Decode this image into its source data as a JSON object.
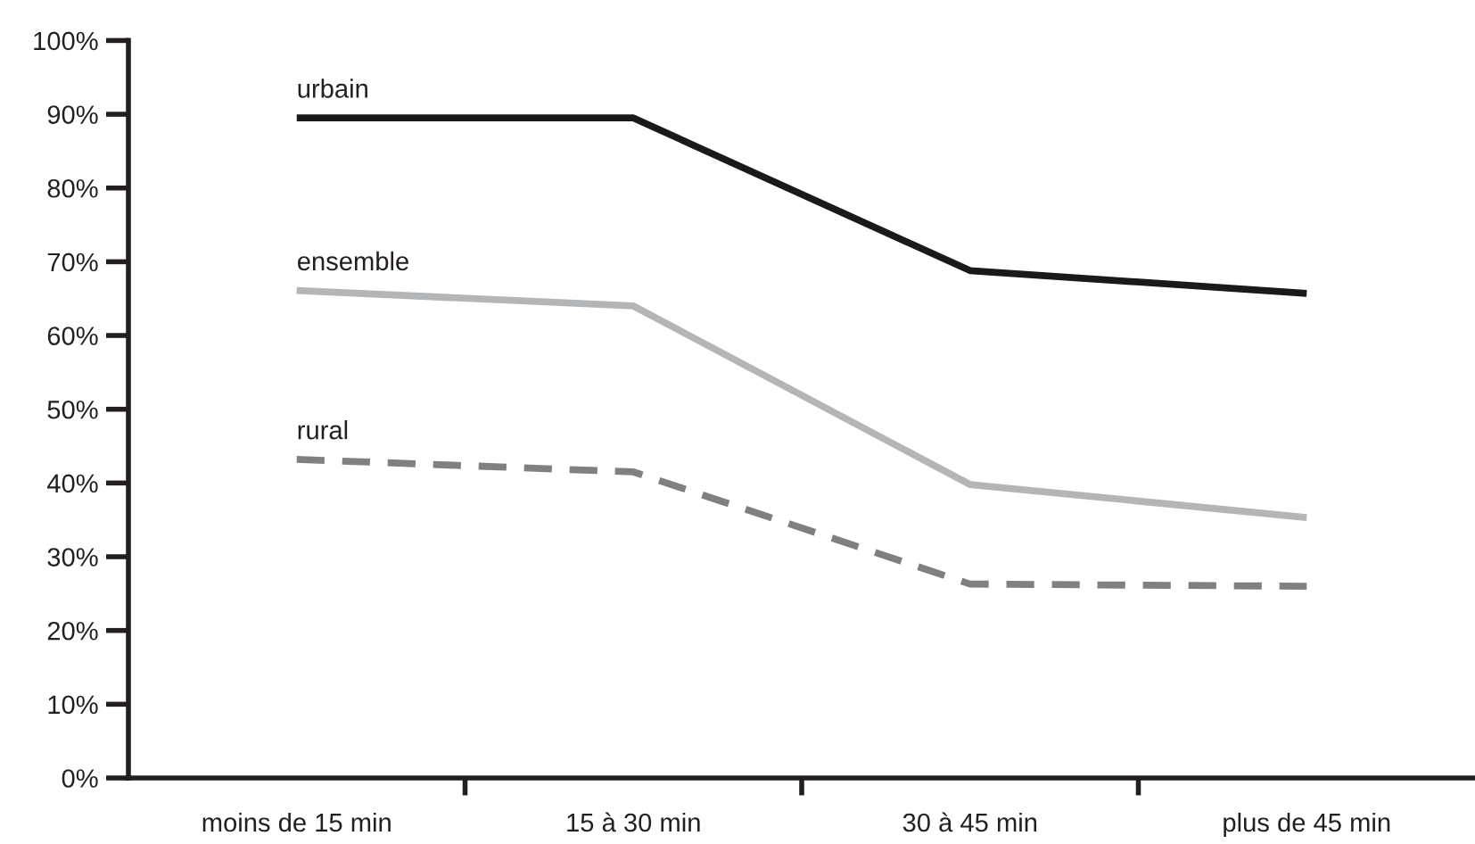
{
  "chart_data": {
    "type": "line",
    "categories": [
      "moins de 15 min",
      "15 à 30 min",
      "30 à 45 min",
      "plus de 45 min"
    ],
    "series": [
      {
        "name": "urbain",
        "color": "#1a1a1a",
        "line_style": "solid",
        "values": [
          89.5,
          89.5,
          68.8,
          65.7
        ]
      },
      {
        "name": "ensemble",
        "color": "#b3b5b7",
        "line_style": "solid",
        "values": [
          66.1,
          64.0,
          39.8,
          35.3
        ]
      },
      {
        "name": "rural",
        "color": "#808080",
        "line_style": "dashed",
        "values": [
          43.2,
          41.5,
          26.3,
          26.0
        ]
      }
    ],
    "ylim": [
      0,
      100
    ],
    "yticks": [
      {
        "value": 0,
        "label": "0%"
      },
      {
        "value": 10,
        "label": "10%"
      },
      {
        "value": 20,
        "label": "20%"
      },
      {
        "value": 30,
        "label": "30%"
      },
      {
        "value": 40,
        "label": "40%"
      },
      {
        "value": 50,
        "label": "50%"
      },
      {
        "value": 60,
        "label": "60%"
      },
      {
        "value": 70,
        "label": "70%"
      },
      {
        "value": 80,
        "label": "80%"
      },
      {
        "value": 90,
        "label": "90%"
      },
      {
        "value": 100,
        "label": "100%"
      }
    ],
    "grid": false,
    "legend": false,
    "marker": "none"
  }
}
